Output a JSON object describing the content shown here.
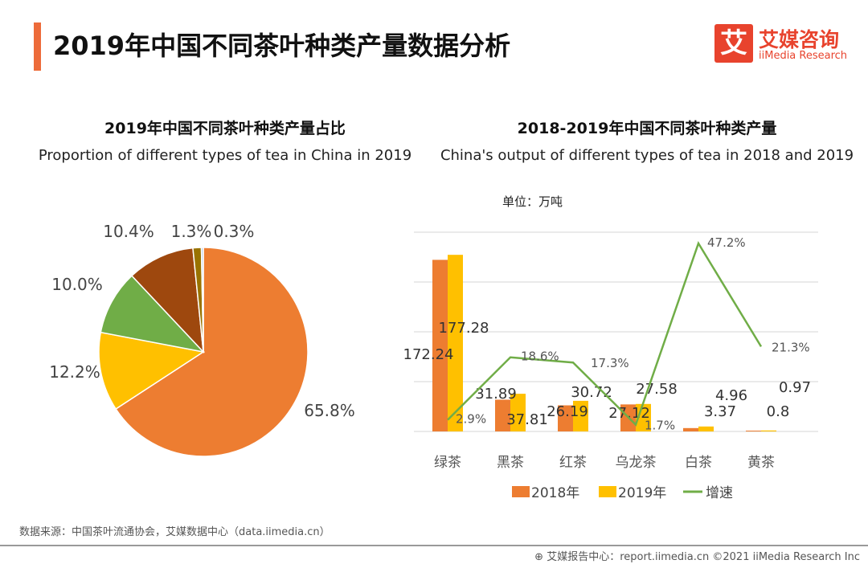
{
  "header": {
    "title": "2019年中国不同茶叶种类产量数据分析",
    "logo_mark": "艾",
    "logo_cn": "艾媒咨询",
    "logo_en": "iiMedia Research",
    "accent_color": "#ED6B3A"
  },
  "unit_label": "单位：万吨",
  "source": "数据来源：中国茶叶流通协会，艾媒数据中心（data.iimedia.cn）",
  "footer": "艾媒报告中心：report.iimedia.cn  ©2021  iiMedia Research  Inc",
  "footer_icon": "globe-icon",
  "chart_data": [
    {
      "type": "pie",
      "title": "2019年中国不同茶叶种类产量占比",
      "subtitle": "Proportion of different types of tea in China in 2019",
      "values": [
        65.8,
        12.2,
        10.0,
        10.4,
        1.3,
        0.3
      ],
      "labels": [
        "65.8%",
        "12.2%",
        "10.0%",
        "10.4%",
        "1.3%",
        "0.3%"
      ],
      "colors": [
        "#ED7D31",
        "#FFC000",
        "#70AD47",
        "#9E480E",
        "#997300",
        "#A9C4E8"
      ]
    },
    {
      "type": "bar",
      "title": "2018-2019年中国不同茶叶种类产量",
      "subtitle": "China's output of different types of tea in 2018 and 2019",
      "categories": [
        "绿茶",
        "黑茶",
        "红茶",
        "乌龙茶",
        "白茶",
        "黄茶"
      ],
      "ylim": [
        0,
        200
      ],
      "y2lim": [
        0,
        50
      ],
      "grid": true,
      "legend": "bottom",
      "series": [
        {
          "name": "2018年",
          "kind": "bar",
          "color": "#ED7D31",
          "values": [
            172.24,
            31.89,
            26.19,
            27.12,
            3.37,
            0.8
          ]
        },
        {
          "name": "2019年",
          "kind": "bar",
          "color": "#FFC000",
          "values": [
            177.28,
            37.81,
            30.72,
            27.58,
            4.96,
            0.97
          ]
        },
        {
          "name": "增速",
          "kind": "line",
          "color": "#70AD47",
          "values": [
            2.9,
            18.6,
            17.3,
            1.7,
            47.2,
            21.3
          ],
          "labels": [
            "2.9%",
            "18.6%",
            "17.3%",
            "1.7%",
            "47.2%",
            "21.3%"
          ]
        }
      ],
      "bar_labels_2018": [
        "172.24",
        "31.89",
        "26.19",
        "27.12",
        "3.37",
        "0.8"
      ],
      "bar_labels_2019": [
        "177.28",
        "37.81",
        "30.72",
        "27.58",
        "4.96",
        "0.97"
      ]
    }
  ]
}
